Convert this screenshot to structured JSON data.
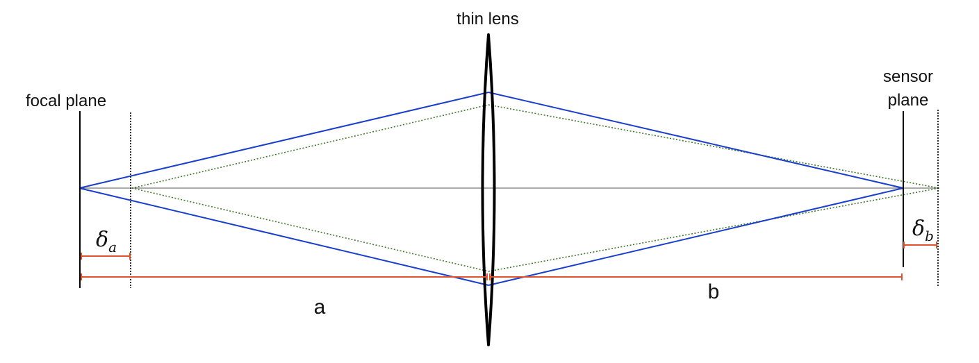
{
  "labels": {
    "lens": "thin lens",
    "focal_plane": "focal plane",
    "sensor_line1": "sensor",
    "sensor_line2": "plane",
    "dist_a": "a",
    "dist_b": "b",
    "delta": "δ",
    "delta_a_sub": "a",
    "delta_b_sub": "b"
  },
  "colors": {
    "in_focus_rays": "#1a3fcc",
    "defocus_rays": "#3d7a2a",
    "dimensions": "#e0522d",
    "planes": "#000000",
    "axis": "#555555"
  }
}
